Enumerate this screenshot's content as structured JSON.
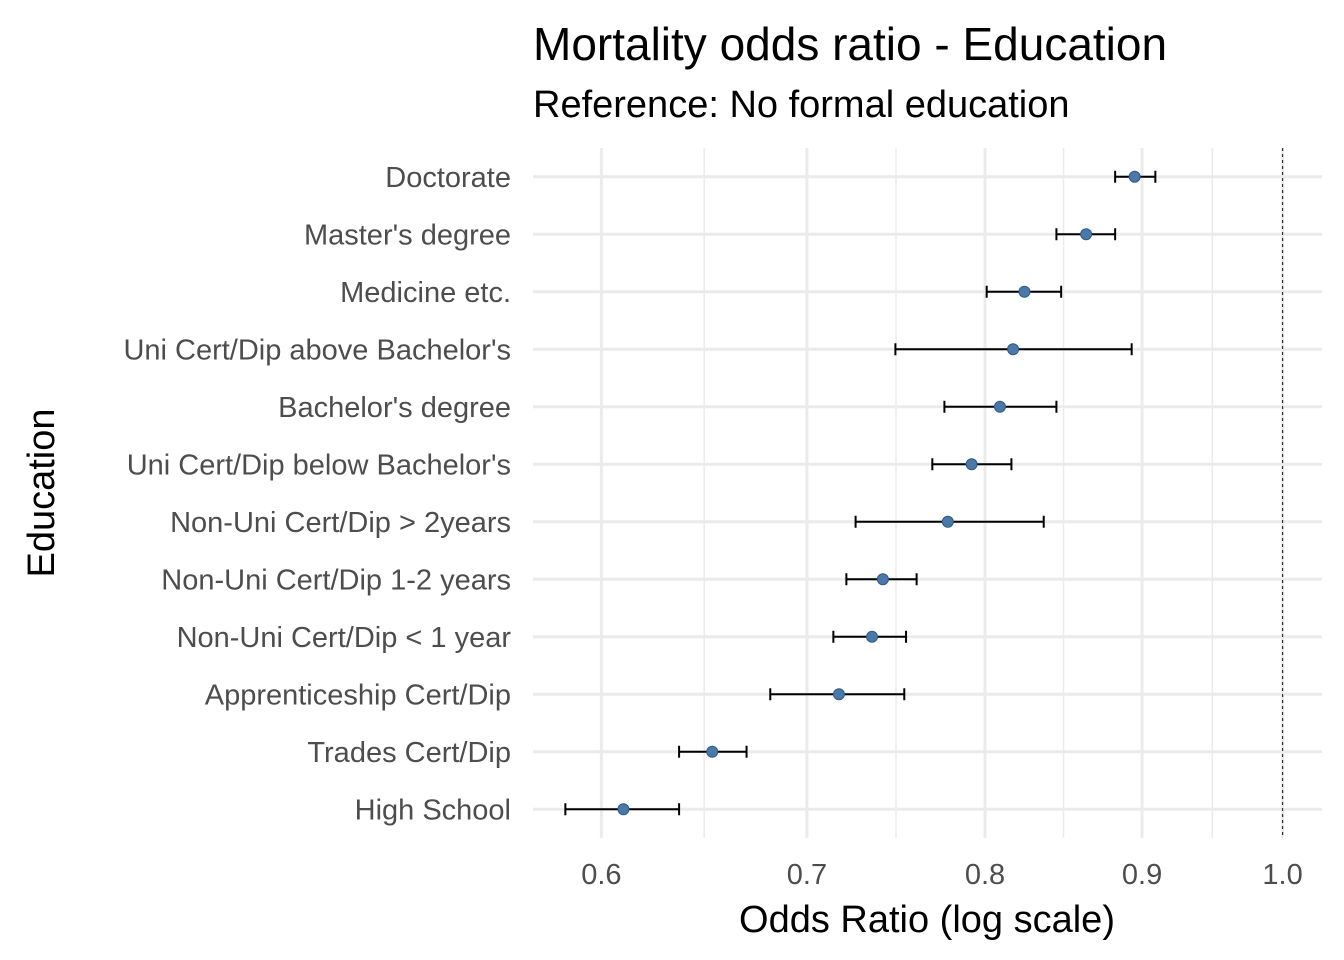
{
  "chart_data": {
    "type": "scatter",
    "title": "Mortality odds ratio - Education",
    "subtitle": "Reference: No formal education",
    "xlabel": "Odds Ratio (log scale)",
    "ylabel": "Education",
    "x_scale": "log",
    "xlim": [
      0.57,
      1.03
    ],
    "x_ticks": [
      0.6,
      0.7,
      0.8,
      0.9,
      1.0
    ],
    "x_tick_labels": [
      "0.6",
      "0.7",
      "0.8",
      "0.9",
      "1.0"
    ],
    "reference_line": 1.0,
    "grid": true,
    "point_color": "#4a78a8",
    "categories": [
      "Doctorate",
      "Master's degree",
      "Medicine etc.",
      "Uni Cert/Dip above Bachelor's",
      "Bachelor's degree",
      "Uni Cert/Dip below Bachelor's",
      "Non-Uni Cert/Dip > 2years",
      "Non-Uni Cert/Dip 1-2 years",
      "Non-Uni Cert/Dip < 1 year",
      "Apprenticeship Cert/Dip",
      "Trades Cert/Dip",
      "High School"
    ],
    "estimates": [
      0.895,
      0.863,
      0.824,
      0.817,
      0.809,
      0.792,
      0.778,
      0.741,
      0.735,
      0.717,
      0.652,
      0.61
    ],
    "lower": [
      0.882,
      0.844,
      0.801,
      0.748,
      0.776,
      0.769,
      0.726,
      0.721,
      0.714,
      0.681,
      0.636,
      0.584
    ],
    "upper": [
      0.909,
      0.882,
      0.847,
      0.893,
      0.844,
      0.816,
      0.836,
      0.76,
      0.754,
      0.753,
      0.669,
      0.636
    ]
  }
}
